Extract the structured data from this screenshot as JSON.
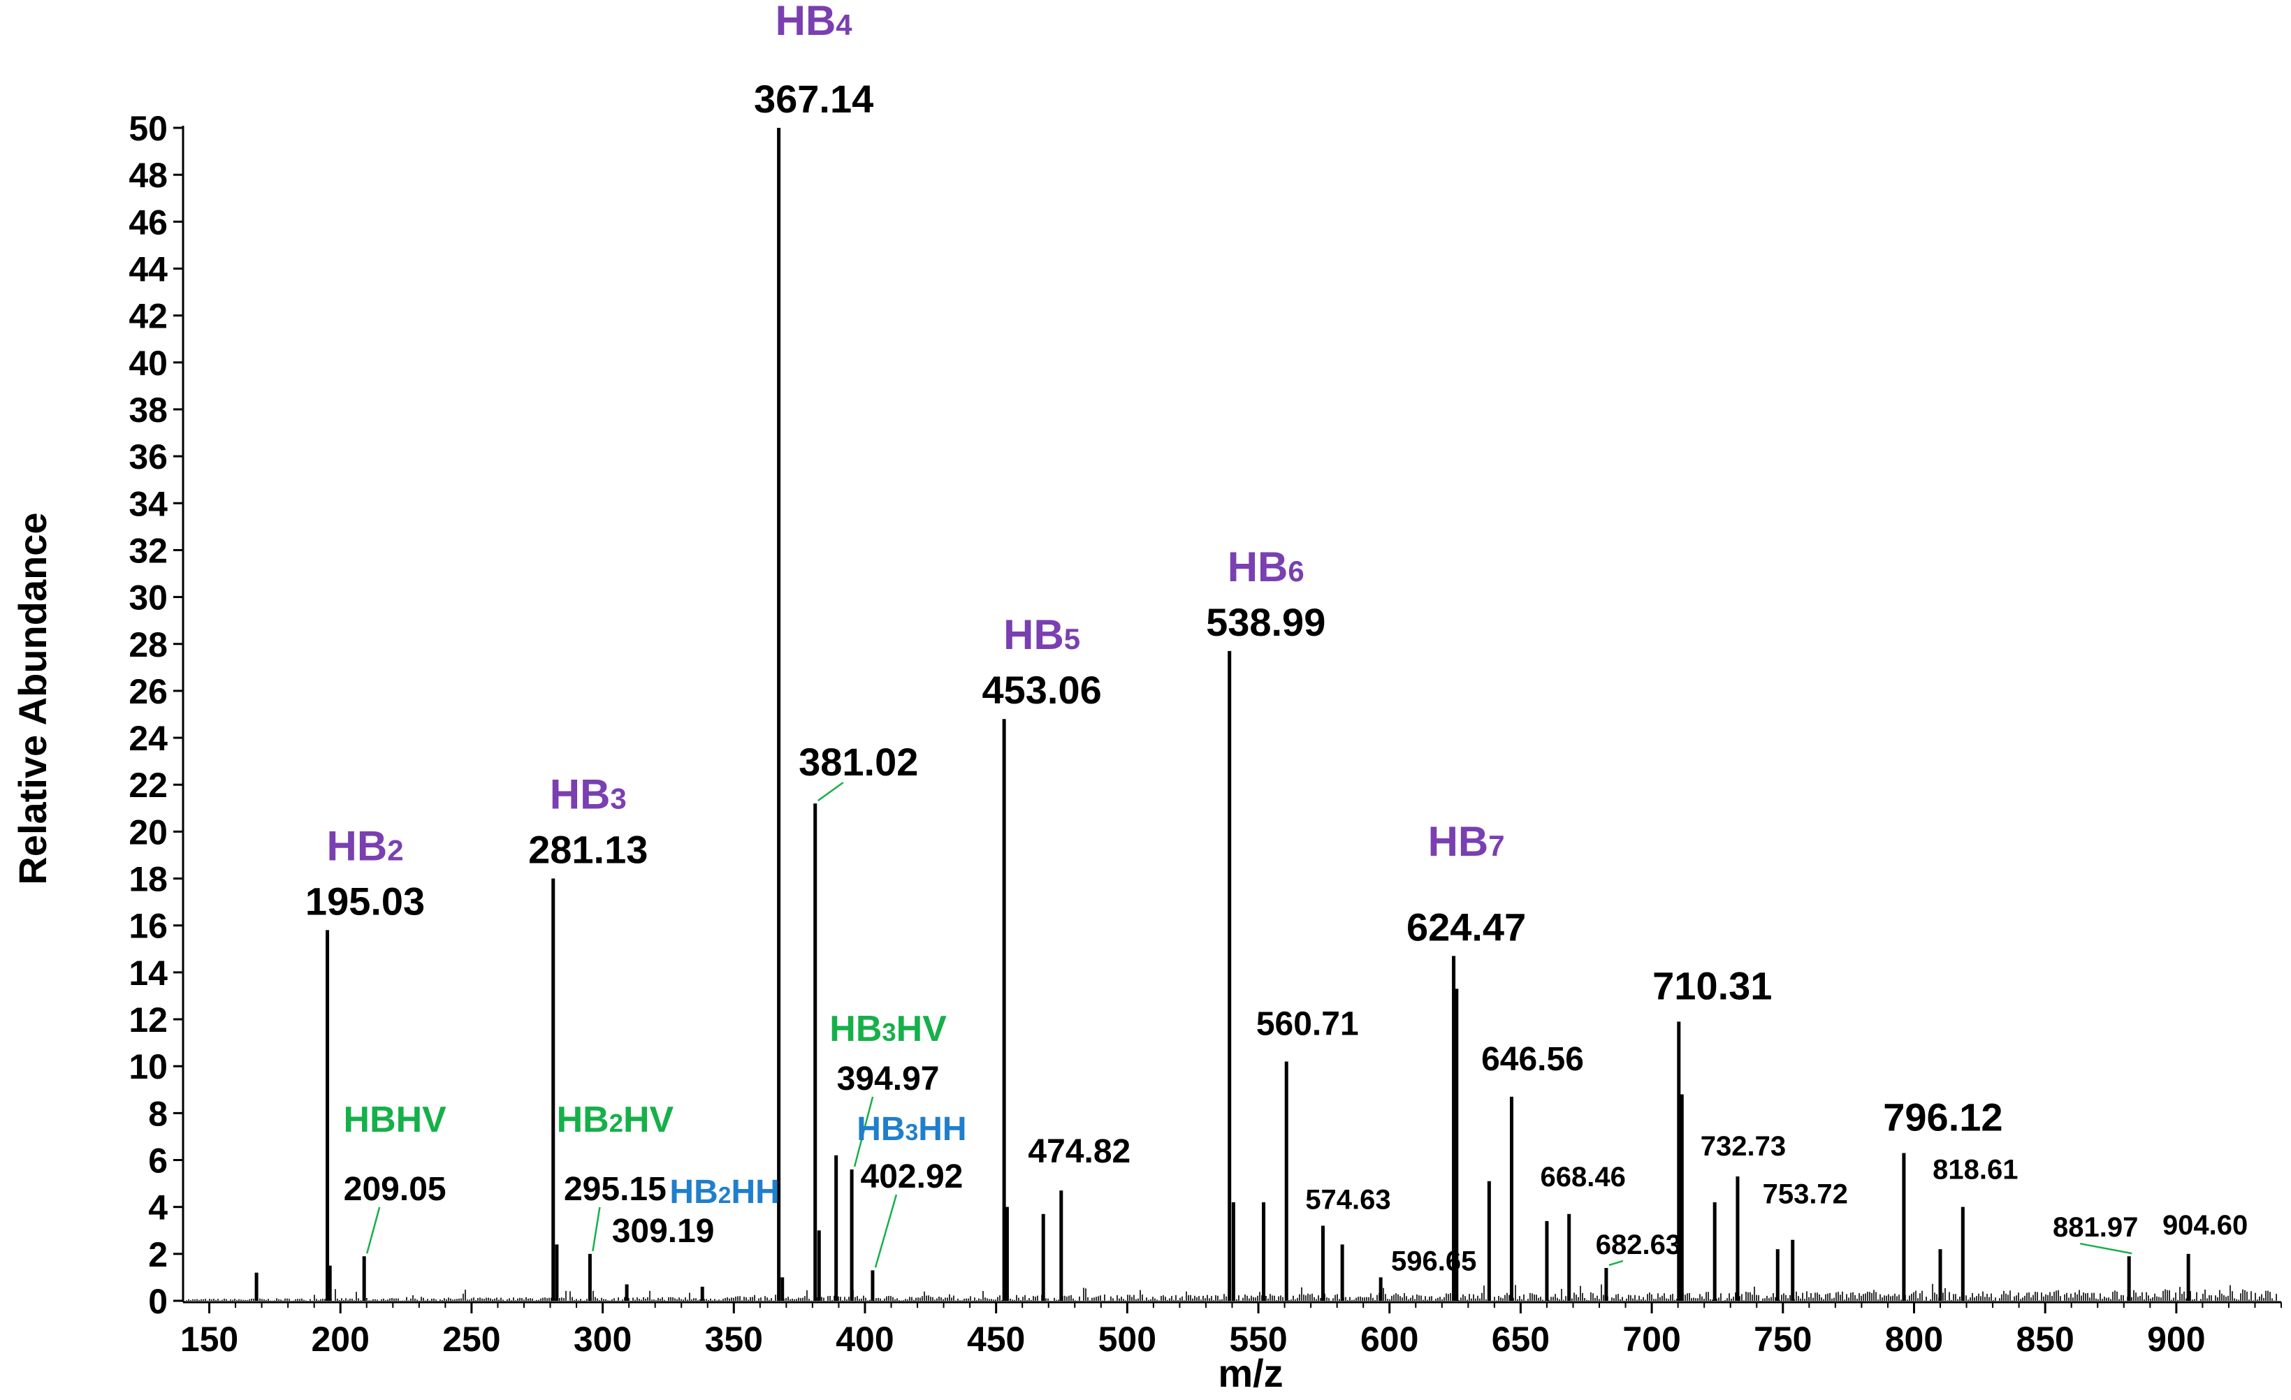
{
  "colors": {
    "purple": "#7a3fb0",
    "green": "#16b04a",
    "blue": "#1f7fcc",
    "axis": "#000000",
    "peak": "#000000"
  },
  "chart_data": {
    "type": "bar",
    "title": "",
    "xlabel": "m/z",
    "ylabel": "Relative Abundance",
    "xlim": [
      140,
      940
    ],
    "ylim": [
      0,
      50
    ],
    "xticks": [
      150,
      200,
      250,
      300,
      350,
      400,
      450,
      500,
      550,
      600,
      650,
      700,
      750,
      800,
      850,
      900
    ],
    "yticks": [
      0,
      2,
      4,
      6,
      8,
      10,
      12,
      14,
      16,
      18,
      20,
      22,
      24,
      26,
      28,
      30,
      32,
      34,
      36,
      38,
      40,
      42,
      44,
      46,
      48,
      50
    ],
    "peaks": [
      {
        "mz": 168.0,
        "intensity": 1.2
      },
      {
        "mz": 195.03,
        "intensity": 15.8
      },
      {
        "mz": 196.0,
        "intensity": 1.5
      },
      {
        "mz": 209.05,
        "intensity": 1.9
      },
      {
        "mz": 281.13,
        "intensity": 18.0
      },
      {
        "mz": 282.5,
        "intensity": 2.4
      },
      {
        "mz": 295.15,
        "intensity": 2.0
      },
      {
        "mz": 309.19,
        "intensity": 0.7
      },
      {
        "mz": 338.0,
        "intensity": 0.6
      },
      {
        "mz": 367.14,
        "intensity": 50.0
      },
      {
        "mz": 368.5,
        "intensity": 1.0
      },
      {
        "mz": 381.02,
        "intensity": 21.2
      },
      {
        "mz": 382.5,
        "intensity": 3.0
      },
      {
        "mz": 389.0,
        "intensity": 6.2
      },
      {
        "mz": 394.97,
        "intensity": 5.6
      },
      {
        "mz": 402.92,
        "intensity": 1.3
      },
      {
        "mz": 453.06,
        "intensity": 24.8
      },
      {
        "mz": 454.2,
        "intensity": 4.0
      },
      {
        "mz": 468.0,
        "intensity": 3.7
      },
      {
        "mz": 474.82,
        "intensity": 4.7
      },
      {
        "mz": 538.99,
        "intensity": 27.7
      },
      {
        "mz": 540.5,
        "intensity": 4.2
      },
      {
        "mz": 552.0,
        "intensity": 4.2
      },
      {
        "mz": 560.71,
        "intensity": 10.2
      },
      {
        "mz": 574.63,
        "intensity": 3.2
      },
      {
        "mz": 582.0,
        "intensity": 2.4
      },
      {
        "mz": 596.65,
        "intensity": 1.0
      },
      {
        "mz": 624.47,
        "intensity": 14.7
      },
      {
        "mz": 625.6,
        "intensity": 13.3
      },
      {
        "mz": 638.0,
        "intensity": 5.1
      },
      {
        "mz": 646.56,
        "intensity": 8.7
      },
      {
        "mz": 660.0,
        "intensity": 3.4
      },
      {
        "mz": 668.46,
        "intensity": 3.7
      },
      {
        "mz": 682.63,
        "intensity": 1.4
      },
      {
        "mz": 710.31,
        "intensity": 11.9
      },
      {
        "mz": 711.5,
        "intensity": 8.8
      },
      {
        "mz": 724.0,
        "intensity": 4.2
      },
      {
        "mz": 732.73,
        "intensity": 5.3
      },
      {
        "mz": 748.0,
        "intensity": 2.2
      },
      {
        "mz": 753.72,
        "intensity": 2.6
      },
      {
        "mz": 796.12,
        "intensity": 6.3
      },
      {
        "mz": 810.0,
        "intensity": 2.2
      },
      {
        "mz": 818.61,
        "intensity": 4.0
      },
      {
        "mz": 881.97,
        "intensity": 1.9
      },
      {
        "mz": 904.6,
        "intensity": 2.0
      }
    ],
    "annotations": [
      {
        "mz": 195.03,
        "text": "195.03",
        "size": "big",
        "ion": "HB",
        "sub": "2",
        "ion_color": "purple"
      },
      {
        "mz": 209.05,
        "text": "209.05",
        "size": "med",
        "ion": "HBHV",
        "sub": "",
        "ion_color": "green"
      },
      {
        "mz": 281.13,
        "text": "281.13",
        "size": "big",
        "ion": "HB",
        "sub": "3",
        "ion_color": "purple"
      },
      {
        "mz": 295.15,
        "text": "295.15",
        "size": "med",
        "ion": "HB",
        "sub": "2",
        "ion_suffix": "HV",
        "ion_color": "green"
      },
      {
        "mz": 309.19,
        "text": "309.19",
        "size": "med",
        "ion": "HB",
        "sub": "2",
        "ion_suffix": "HH",
        "ion_color": "blue"
      },
      {
        "mz": 367.14,
        "text": "367.14",
        "size": "big",
        "ion": "HB",
        "sub": "4",
        "ion_color": "purple"
      },
      {
        "mz": 381.02,
        "text": "381.02",
        "size": "big"
      },
      {
        "mz": 394.97,
        "text": "394.97",
        "size": "med",
        "ion": "HB",
        "sub": "3",
        "ion_suffix": "HV",
        "ion_color": "green"
      },
      {
        "mz": 402.92,
        "text": "402.92",
        "size": "med",
        "ion": "HB",
        "sub": "3",
        "ion_suffix": "HH",
        "ion_color": "blue"
      },
      {
        "mz": 453.06,
        "text": "453.06",
        "size": "big",
        "ion": "HB",
        "sub": "5",
        "ion_color": "purple"
      },
      {
        "mz": 474.82,
        "text": "474.82",
        "size": "med"
      },
      {
        "mz": 538.99,
        "text": "538.99",
        "size": "big",
        "ion": "HB",
        "sub": "6",
        "ion_color": "purple"
      },
      {
        "mz": 560.71,
        "text": "560.71",
        "size": "med"
      },
      {
        "mz": 574.63,
        "text": "574.63",
        "size": "small"
      },
      {
        "mz": 596.65,
        "text": "596.65",
        "size": "small"
      },
      {
        "mz": 624.47,
        "text": "624.47",
        "size": "big",
        "ion": "HB",
        "sub": "7",
        "ion_color": "purple"
      },
      {
        "mz": 646.56,
        "text": "646.56",
        "size": "med"
      },
      {
        "mz": 668.46,
        "text": "668.46",
        "size": "small"
      },
      {
        "mz": 682.63,
        "text": "682.63",
        "size": "small"
      },
      {
        "mz": 710.31,
        "text": "710.31",
        "size": "big"
      },
      {
        "mz": 732.73,
        "text": "732.73",
        "size": "small"
      },
      {
        "mz": 753.72,
        "text": "753.72",
        "size": "small"
      },
      {
        "mz": 796.12,
        "text": "796.12",
        "size": "big"
      },
      {
        "mz": 818.61,
        "text": "818.61",
        "size": "small"
      },
      {
        "mz": 881.97,
        "text": "881.97",
        "size": "small"
      },
      {
        "mz": 904.6,
        "text": "904.60",
        "size": "small"
      }
    ]
  }
}
